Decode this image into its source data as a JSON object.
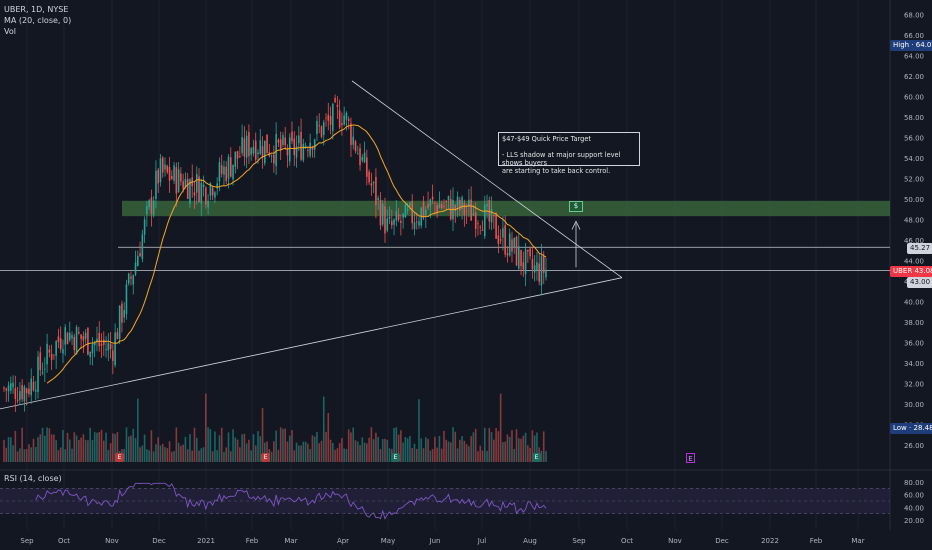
{
  "legend": {
    "symbol_line": "UBER, 1D, NYSE",
    "ma_line": "MA (20, close, 0)",
    "vol_line": "Vol"
  },
  "rsi_label": "RSI (14, close)",
  "annotation": {
    "title": "$47-$49 Quick Price Target",
    "body_1": "- LLS shadow at major support level shows buyers",
    "body_2": "are starting to take back control."
  },
  "tags": {
    "high_label": "High",
    "high_value": "64.05",
    "low_label": "Low",
    "low_value": "28.48",
    "price_label": "UBER",
    "price_value": "43.08",
    "resistance_value": "45.27",
    "support_value": "43.00"
  },
  "earnings": {
    "marker": "E",
    "target_marker": "$"
  },
  "colors": {
    "background": "#131722",
    "up": "#26a69a",
    "down": "#ef5350",
    "ma": "#f5a623",
    "rsi": "#7e57c2",
    "zone": "#3c6e3f"
  },
  "chart_data": {
    "type": "candlestick",
    "symbol": "UBER",
    "interval": "1D",
    "exchange": "NYSE",
    "x_labels": [
      "Sep",
      "Oct",
      "Nov",
      "Dec",
      "2021",
      "Feb",
      "Mar",
      "Apr",
      "May",
      "Jun",
      "Jul",
      "Aug",
      "Sep",
      "Oct",
      "Nov",
      "Dec",
      "2022",
      "Feb",
      "Mar"
    ],
    "price_axis": [
      "68.00",
      "66.00",
      "64.00",
      "62.00",
      "60.00",
      "58.00",
      "56.00",
      "54.00",
      "52.00",
      "50.00",
      "48.00",
      "46.00",
      "44.00",
      "42.00",
      "40.00",
      "38.00",
      "36.00",
      "34.00",
      "32.00",
      "30.00",
      "28.00",
      "26.00"
    ],
    "rsi_axis": [
      "80.00",
      "60.00",
      "40.00",
      "20.00"
    ],
    "ylim": [
      25,
      69
    ],
    "high": 64.05,
    "low": 28.48,
    "last_price": 43.08,
    "levels": [
      45.27,
      43.0
    ],
    "target_zone": [
      48.3,
      49.8
    ],
    "monthly_close": [
      {
        "x": "Sep",
        "value": 31.5
      },
      {
        "x": "Oct",
        "value": 37.0
      },
      {
        "x": "Nov",
        "value": 35.3
      },
      {
        "x": "Dec",
        "value": 52.5
      },
      {
        "x": "2021",
        "value": 51.0
      },
      {
        "x": "Feb",
        "value": 55.5
      },
      {
        "x": "Mar",
        "value": 54.5
      },
      {
        "x": "Apr",
        "value": 58.5
      },
      {
        "x": "May",
        "value": 47.0
      },
      {
        "x": "Jun",
        "value": 49.5
      },
      {
        "x": "Jul",
        "value": 48.5
      },
      {
        "x": "Aug",
        "value": 43.08
      }
    ]
  }
}
